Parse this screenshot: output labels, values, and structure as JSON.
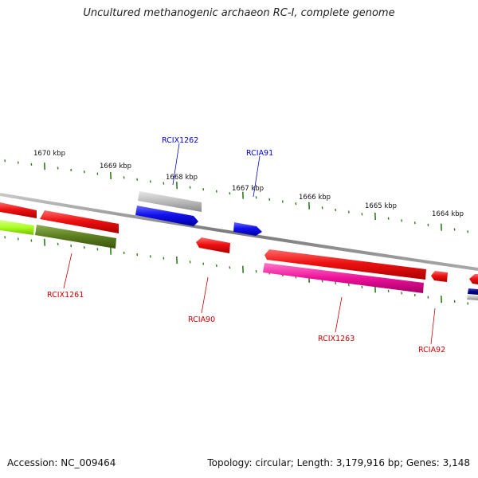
{
  "title": "Uncultured methanogenic archaeon RC-I, complete genome",
  "footer": {
    "accession": "Accession: NC_009464",
    "summary": "Topology: circular; Length: 3,179,916 bp; Genes: 3,148"
  },
  "scale_labels": [
    "1670 kbp",
    "1669 kbp",
    "1668 kbp",
    "1667 kbp",
    "1666 kbp",
    "1665 kbp",
    "1664 kbp"
  ],
  "gene_labels": {
    "rcix1262": "RCIX1262",
    "rcia91": "RCIA91",
    "rcix1261": "RCIX1261",
    "rcia90": "RCIA90",
    "rcix1263": "RCIX1263",
    "rcia92": "RCIA92"
  },
  "colors": {
    "backbone": "#8a8a8a",
    "tick": "#2e7d1e",
    "label_plus_strand": "#0000cc",
    "label_minus_strand": "#cc0000",
    "red_gene": "#ee1111",
    "blue_gene": "#1111ee",
    "gray_gene": "#bbbbbb",
    "lime_gene": "#aaff22",
    "olive_gene": "#5a7d1e",
    "magenta_gene": "#ee1199",
    "navy_gene": "#000088"
  }
}
